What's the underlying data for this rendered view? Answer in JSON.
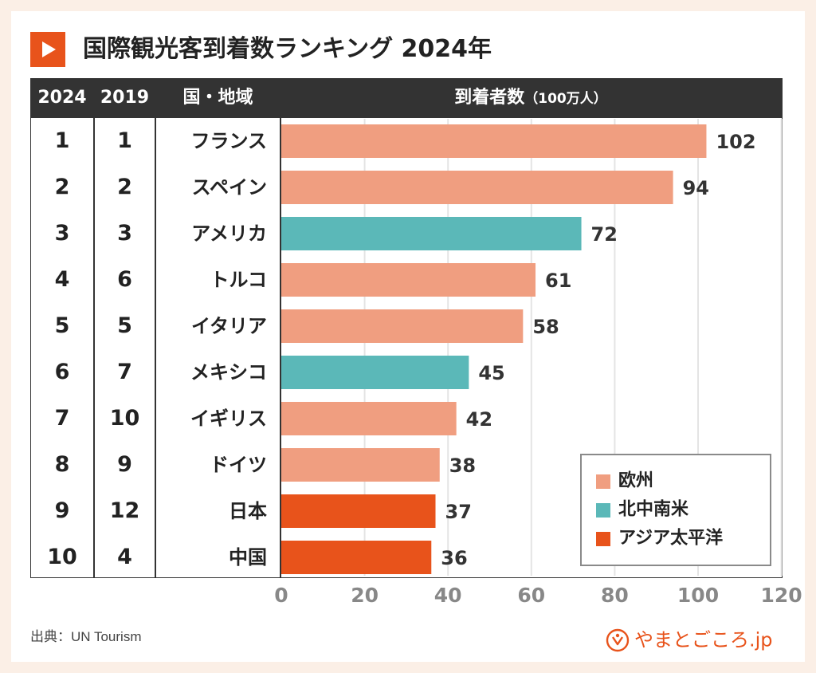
{
  "title": "国際観光客到着数ランキング 2024年",
  "table": {
    "headers": {
      "rank2024": "2024",
      "rank2019": "2019",
      "region": "国・地域",
      "arrivals": "到着者数",
      "unit": "（100万人）"
    },
    "rows": [
      {
        "rank2024": "1",
        "rank2019": "1",
        "name": "フランス"
      },
      {
        "rank2024": "2",
        "rank2019": "2",
        "name": "スペイン"
      },
      {
        "rank2024": "3",
        "rank2019": "3",
        "name": "アメリカ"
      },
      {
        "rank2024": "4",
        "rank2019": "6",
        "name": "トルコ"
      },
      {
        "rank2024": "5",
        "rank2019": "5",
        "name": "イタリア"
      },
      {
        "rank2024": "6",
        "rank2019": "7",
        "name": "メキシコ"
      },
      {
        "rank2024": "7",
        "rank2019": "10",
        "name": "イギリス"
      },
      {
        "rank2024": "8",
        "rank2019": "9",
        "name": "ドイツ"
      },
      {
        "rank2024": "9",
        "rank2019": "12",
        "name": "日本"
      },
      {
        "rank2024": "10",
        "rank2019": "4",
        "name": "中国"
      }
    ]
  },
  "chart_data": {
    "type": "bar",
    "orientation": "horizontal",
    "categories": [
      "フランス",
      "スペイン",
      "アメリカ",
      "トルコ",
      "イタリア",
      "メキシコ",
      "イギリス",
      "ドイツ",
      "日本",
      "中国"
    ],
    "values": [
      102,
      94,
      72,
      61,
      58,
      45,
      42,
      38,
      37,
      36
    ],
    "region": [
      "欧州",
      "欧州",
      "北中南米",
      "欧州",
      "欧州",
      "北中南米",
      "欧州",
      "欧州",
      "アジア太平洋",
      "アジア太平洋"
    ],
    "xlabel": "到着者数（100万人）",
    "xlim": [
      0,
      120
    ],
    "xticks": [
      "0",
      "20",
      "40",
      "60",
      "80",
      "100",
      "120"
    ],
    "grid": true,
    "legend": {
      "position": "bottom-right",
      "items": [
        {
          "label": "欧州",
          "color": "#f09e80"
        },
        {
          "label": "北中南米",
          "color": "#5bb8b8"
        },
        {
          "label": "アジア太平洋",
          "color": "#e8531b"
        }
      ]
    }
  },
  "colors": {
    "accent": "#e8531b",
    "header_bg": "#333333",
    "europe": "#f09e80",
    "americas": "#5bb8b8",
    "asia_pacific": "#e8531b"
  },
  "source": "出典：UN Tourism",
  "brand": {
    "name": "やまとごころ.jp",
    "icon": "yamatogokoro-logo-icon"
  }
}
